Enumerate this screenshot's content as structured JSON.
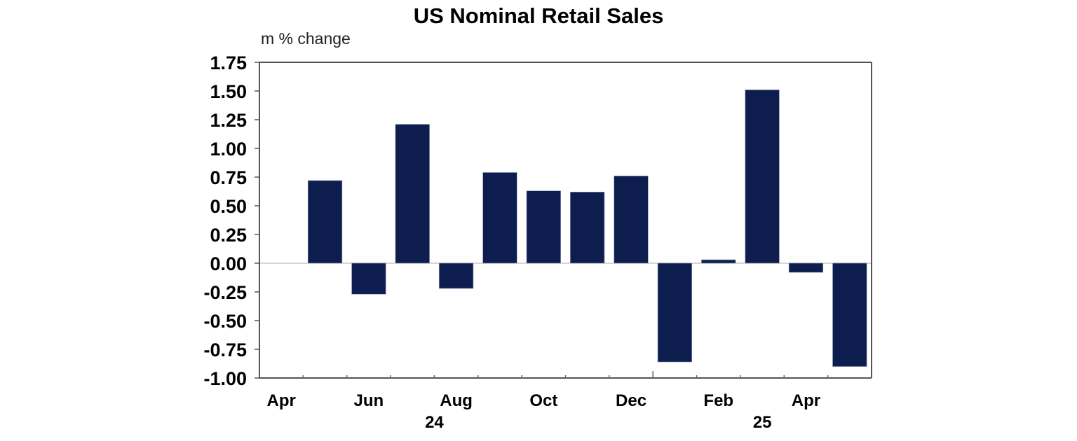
{
  "chart_data": {
    "type": "bar",
    "title": "US Nominal Retail Sales",
    "ylabel": "m % change",
    "xlabel": "",
    "ylim": [
      -1.0,
      1.75
    ],
    "yticks": [
      1.75,
      1.5,
      1.25,
      1.0,
      0.75,
      0.5,
      0.25,
      0.0,
      -0.25,
      -0.5,
      -0.75,
      -1.0
    ],
    "ytick_labels": [
      "1.75",
      "1.50",
      "1.25",
      "1.00",
      "0.75",
      "0.50",
      "0.25",
      "0.00",
      "-0.25",
      "-0.50",
      "-0.75",
      "-1.00"
    ],
    "categories": [
      "Apr 2024",
      "May 2024",
      "Jun 2024",
      "Jul 2024",
      "Aug 2024",
      "Sep 2024",
      "Oct 2024",
      "Nov 2024",
      "Dec 2024",
      "Jan 2025",
      "Feb 2025",
      "Mar 2025",
      "Apr 2025",
      "May 2025"
    ],
    "values": [
      null,
      0.72,
      -0.27,
      1.21,
      -0.22,
      0.79,
      0.63,
      0.62,
      0.76,
      -0.86,
      0.03,
      1.51,
      -0.08,
      -0.9
    ],
    "xtick_labels": [
      {
        "label": "Apr",
        "index": 0
      },
      {
        "label": "Jun",
        "index": 2
      },
      {
        "label": "Aug",
        "index": 4
      },
      {
        "label": "Oct",
        "index": 6
      },
      {
        "label": "Dec",
        "index": 8
      },
      {
        "label": "Feb",
        "index": 10
      },
      {
        "label": "Apr",
        "index": 12
      }
    ],
    "year_labels": [
      {
        "label": "24",
        "index": 4
      },
      {
        "label": "25",
        "index": 11
      }
    ],
    "year_divider_index": 9,
    "bar_color": "#0d1e4e",
    "zero_line_color": "#c8c8c8",
    "grid": false,
    "legend": "none"
  }
}
